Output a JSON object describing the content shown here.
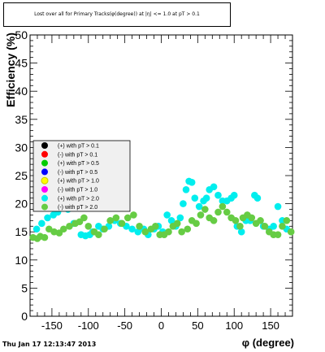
{
  "title": "Lost over all for Primary Tracks(φ(degree)) at |η| <= 1.0 at pT > 0.1",
  "timestamp": "Thu Jan 17 12:13:47 2013",
  "chart_data": {
    "type": "scatter",
    "xlabel": "φ (degree)",
    "ylabel": "Efficiency (%)",
    "xlim": [
      -180,
      180
    ],
    "ylim": [
      0,
      50
    ],
    "xticks": [
      -150,
      -100,
      -50,
      0,
      50,
      100,
      150
    ],
    "yticks": [
      0,
      5,
      10,
      15,
      20,
      25,
      30,
      35,
      40,
      45,
      50
    ],
    "legend_position": "middle-left",
    "series": [
      {
        "name": "(+) with pT > 0.1",
        "color": "#000000",
        "x": [],
        "y": []
      },
      {
        "name": "(-) with pT > 0.1",
        "color": "#ff0000",
        "x": [],
        "y": []
      },
      {
        "name": "(+) with pT > 0.5",
        "color": "#00cc00",
        "x": [],
        "y": []
      },
      {
        "name": "(-) with pT > 0.5",
        "color": "#0000ff",
        "x": [],
        "y": []
      },
      {
        "name": "(+) with pT > 1.0",
        "color": "#ffff00",
        "x": [],
        "y": []
      },
      {
        "name": "(-) with pT > 1.0",
        "color": "#ff00ff",
        "x": [],
        "y": []
      },
      {
        "name": "(+) with pT > 2.0",
        "color": "#00eeee",
        "x": [
          -171,
          -164,
          -156,
          -148,
          -142,
          -136,
          -128,
          -120,
          -110,
          -104,
          -98,
          -94,
          -86,
          -80,
          -72,
          -64,
          -56,
          -48,
          -40,
          -32,
          -24,
          -18,
          -10,
          -4,
          2,
          8,
          14,
          20,
          26,
          30,
          34,
          38,
          42,
          46,
          52,
          58,
          62,
          66,
          72,
          78,
          84,
          90,
          96,
          100,
          104,
          110,
          116,
          122,
          128,
          132,
          140,
          148,
          154,
          160,
          166,
          172
        ],
        "y": [
          15.5,
          16.5,
          17.5,
          18.0,
          18.5,
          19.5,
          19.0,
          16.5,
          14.5,
          14.3,
          14.5,
          15.0,
          16.0,
          15.5,
          16.0,
          17.0,
          16.5,
          16.0,
          15.5,
          15.0,
          15.5,
          14.5,
          15.5,
          16.0,
          15.0,
          18.0,
          17.0,
          16.0,
          17.5,
          20.0,
          22.5,
          24.0,
          23.8,
          21.0,
          19.5,
          20.5,
          21.0,
          22.5,
          23.0,
          21.5,
          20.5,
          20.5,
          21.0,
          21.5,
          16.0,
          15.0,
          17.0,
          17.0,
          21.5,
          21.0,
          16.0,
          15.5,
          16.0,
          19.5,
          17.0,
          15.5
        ]
      },
      {
        "name": "(-) with pT > 2.0",
        "color": "#66cc44",
        "x": [
          -176,
          -170,
          -166,
          -160,
          -154,
          -147,
          -140,
          -134,
          -126,
          -118,
          -112,
          -106,
          -100,
          -92,
          -86,
          -78,
          -70,
          -62,
          -54,
          -46,
          -38,
          -30,
          -22,
          -14,
          -8,
          -2,
          4,
          10,
          16,
          22,
          28,
          36,
          42,
          48,
          54,
          60,
          66,
          72,
          78,
          84,
          90,
          96,
          102,
          108,
          112,
          118,
          124,
          130,
          136,
          142,
          148,
          154,
          160,
          166,
          172,
          178
        ],
        "y": [
          14.0,
          13.8,
          14.2,
          14.0,
          15.5,
          15.0,
          14.8,
          15.5,
          16.0,
          16.5,
          16.8,
          17.5,
          16.0,
          15.0,
          14.5,
          15.5,
          17.0,
          17.5,
          16.5,
          17.5,
          18.0,
          16.0,
          15.0,
          15.5,
          16.0,
          14.5,
          14.5,
          15.0,
          16.0,
          16.5,
          15.0,
          15.5,
          17.0,
          16.5,
          18.0,
          19.0,
          17.5,
          17.0,
          18.5,
          19.5,
          18.5,
          17.5,
          17.0,
          16.0,
          17.5,
          18.0,
          17.5,
          16.5,
          17.0,
          16.0,
          15.0,
          14.5,
          14.5,
          16.0,
          17.0,
          15.0
        ]
      }
    ]
  }
}
